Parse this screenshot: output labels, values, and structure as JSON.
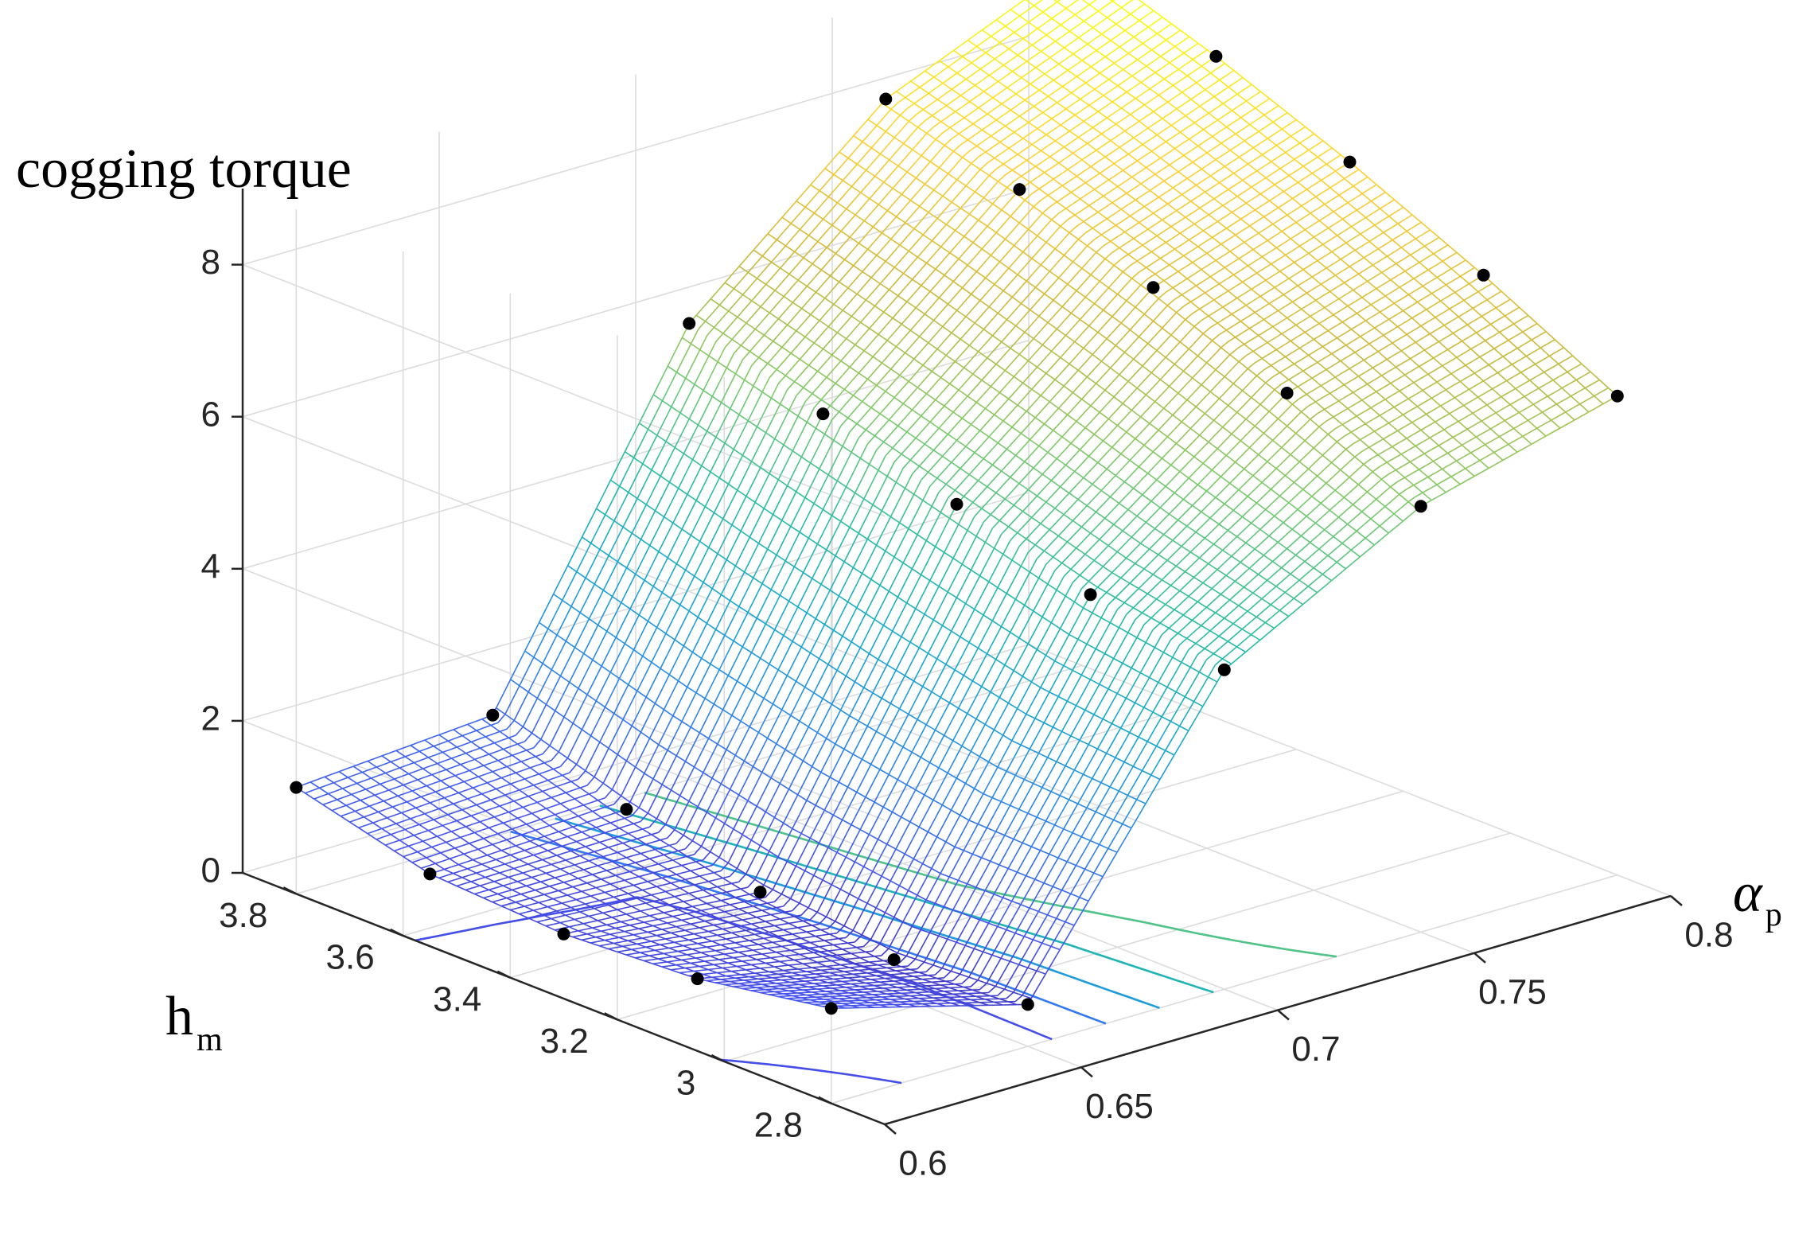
{
  "chart_data": {
    "type": "surface",
    "zlabel": "cogging torque",
    "xlabel_main": "α",
    "xlabel_sub": "p",
    "ylabel_main": "h",
    "ylabel_sub": "m",
    "xlim": [
      0.6,
      0.8
    ],
    "ylim": [
      2.7,
      3.9
    ],
    "zlim": [
      0,
      9
    ],
    "x_ticks": [
      0.6,
      0.65,
      0.7,
      0.75,
      0.8
    ],
    "x_tick_labels": [
      "0.6",
      "0.65",
      "0.7",
      "0.75",
      "0.8"
    ],
    "y_ticks": [
      2.8,
      3.0,
      3.2,
      3.4,
      3.6,
      3.8
    ],
    "y_tick_labels": [
      "2.8",
      "3",
      "3.2",
      "3.4",
      "3.6",
      "3.8"
    ],
    "z_ticks": [
      0,
      2,
      4,
      6,
      8
    ],
    "z_tick_labels": [
      "0",
      "2",
      "4",
      "6",
      "8"
    ],
    "grid": true,
    "colormap": [
      "#3e26a8",
      "#4654f0",
      "#2e84ef",
      "#17a8cf",
      "#29bea2",
      "#7fca68",
      "#d0ba3a",
      "#fcd134",
      "#f9fb14"
    ],
    "sample_points_grid": {
      "alpha_p": [
        0.6,
        0.65,
        0.7,
        0.75,
        0.8
      ],
      "h_m": [
        2.8,
        3.05,
        3.3,
        3.55,
        3.8
      ],
      "cogging_torque": [
        [
          1.25,
          0.55,
          4.2,
          5.6,
          6.3
        ],
        [
          0.95,
          0.45,
          4.5,
          6.4,
          7.2
        ],
        [
          0.85,
          0.65,
          5.0,
          7.1,
          8.0
        ],
        [
          0.95,
          1.05,
          5.5,
          7.7,
          8.7
        ],
        [
          1.4,
          1.6,
          6.0,
          8.2,
          9.3
        ]
      ]
    },
    "contour_levels": [
      1,
      2,
      3,
      4,
      5
    ]
  }
}
